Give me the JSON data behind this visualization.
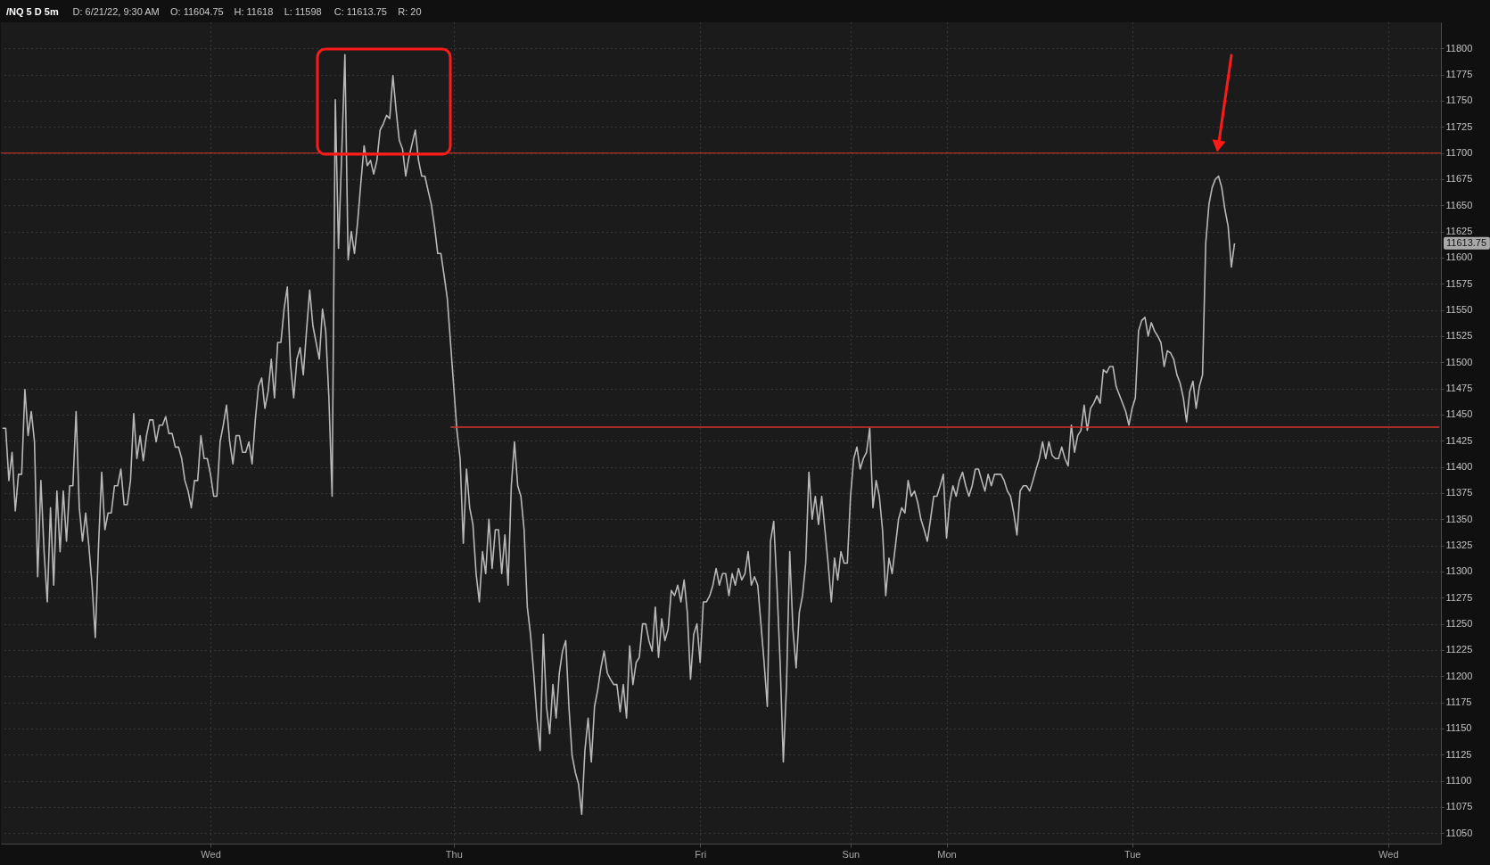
{
  "chart_data": {
    "type": "line",
    "title": "/NQ 5 D 5m",
    "annotations": [
      "D: 6/21/22, 9:30 AM",
      "O: 11604.75",
      "H: 11618",
      "L: 11598",
      "C: 11613.75",
      "R: 20",
      "11613.75"
    ],
    "categories": [
      null,
      null,
      null,
      null,
      null,
      null,
      null,
      null,
      null,
      null,
      null,
      null,
      null,
      null,
      null,
      null,
      null,
      null,
      null,
      null,
      null,
      null,
      null,
      null,
      null,
      null,
      null,
      null,
      null,
      null,
      null,
      null,
      null,
      null,
      null,
      null,
      null,
      null,
      null,
      null,
      null,
      null,
      null,
      null,
      null,
      null,
      null,
      null,
      null,
      null,
      null,
      null,
      null,
      null,
      null,
      null,
      null,
      null,
      null,
      null,
      null,
      null,
      null,
      null,
      null,
      "Wed",
      null,
      null,
      null,
      null,
      null,
      null,
      null,
      null,
      null,
      null,
      null,
      null,
      null,
      null,
      null,
      null,
      null,
      null,
      null,
      null,
      null,
      null,
      null,
      null,
      null,
      null,
      null,
      null,
      null,
      null,
      null,
      null,
      null,
      null,
      null,
      null,
      null,
      null,
      null,
      null,
      null,
      null,
      null,
      null,
      null,
      null,
      null,
      null,
      null,
      null,
      null,
      null,
      null,
      null,
      null,
      null,
      null,
      null,
      null,
      null,
      null,
      null,
      null,
      null,
      null,
      null,
      null,
      null,
      null,
      null,
      null,
      null,
      null,
      null,
      null,
      "Thu",
      null,
      null,
      null,
      null,
      null,
      null,
      null,
      null,
      null,
      null,
      null,
      null,
      null,
      null,
      null,
      null,
      null,
      null,
      null,
      null,
      null,
      null,
      null,
      null,
      null,
      null,
      null,
      null,
      null,
      null,
      null,
      null,
      null,
      null,
      null,
      null,
      null,
      null,
      null,
      null,
      null,
      null,
      null,
      null,
      null,
      null,
      null,
      null,
      null,
      null,
      null,
      null,
      null,
      null,
      null,
      null,
      null,
      null,
      null,
      null,
      null,
      null,
      null,
      null,
      null,
      null,
      null,
      null,
      null,
      null,
      null,
      null,
      null,
      null,
      null,
      null,
      "Fri",
      null,
      null,
      null,
      null,
      null,
      null,
      null,
      null,
      null,
      null,
      null,
      null,
      null,
      null,
      null,
      null,
      null,
      null,
      null,
      null,
      null,
      null,
      null,
      null,
      null,
      null,
      null,
      null,
      null,
      null,
      null,
      null,
      null,
      null,
      null,
      null,
      null,
      null,
      null,
      null,
      null,
      null,
      null,
      null,
      null,
      null,
      "Sun",
      null,
      null,
      null,
      null,
      null,
      null,
      null,
      null,
      null,
      null,
      null,
      null,
      null,
      null,
      null,
      null,
      null,
      null,
      null,
      null,
      null,
      null,
      null,
      null,
      null,
      null,
      null,
      null,
      null,
      "Mon",
      null,
      null,
      null,
      null,
      null,
      null,
      null,
      null,
      null,
      null,
      null,
      null,
      null,
      null,
      null,
      null,
      null,
      null,
      null,
      null,
      null,
      null,
      null,
      null,
      null,
      null,
      null,
      null,
      null,
      null,
      null,
      null,
      null,
      null,
      null,
      null,
      null,
      null,
      null,
      null,
      null,
      null,
      null,
      null,
      null,
      null,
      null,
      null,
      null,
      null,
      null,
      null,
      null,
      null,
      null,
      null,
      null,
      "Tue",
      null,
      null,
      null,
      null,
      null,
      null,
      null,
      null,
      null,
      null,
      null,
      null,
      null,
      null,
      null,
      null,
      null,
      null,
      null,
      null,
      null,
      null,
      null,
      null,
      null,
      null,
      null,
      null,
      null,
      null,
      null,
      null,
      null,
      null,
      null,
      null,
      null,
      null,
      null,
      null,
      null,
      null,
      null,
      null,
      null,
      null,
      null,
      null,
      null,
      null,
      null,
      null,
      null,
      null,
      null,
      null,
      null,
      null,
      null,
      null,
      null,
      null,
      null,
      null,
      null,
      null,
      null,
      null,
      null,
      null,
      null,
      null,
      null,
      null,
      null,
      null,
      null,
      null,
      null,
      "Wed",
      null,
      null,
      null,
      null,
      null,
      null,
      null,
      null,
      null,
      null,
      null,
      null,
      null,
      null,
      null,
      null
    ],
    "series": [
      {
        "color": "#b8b8b8",
        "values": [
          11437,
          11437,
          11387,
          11414,
          11358,
          11393,
          11393,
          11474,
          11430,
          11453,
          11424,
          11295,
          11387,
          11319,
          11271,
          11361,
          11287,
          11377,
          11319,
          11377,
          11329,
          11382,
          11382,
          11453,
          11361,
          11329,
          11356,
          11324,
          11287,
          11237,
          11324,
          11395,
          11340,
          11356,
          11356,
          11382,
          11382,
          11398,
          11364,
          11364,
          11387,
          11451,
          11408,
          11430,
          11406,
          11430,
          11445,
          11445,
          11424,
          11440,
          11440,
          11448,
          11432,
          11432,
          11419,
          11419,
          11408,
          11387,
          11377,
          11361,
          11387,
          11387,
          11430,
          11408,
          11408,
          11393,
          11372,
          11372,
          11424,
          11440,
          11459,
          11424,
          11403,
          11430,
          11430,
          11414,
          11414,
          11424,
          11403,
          11445,
          11477,
          11485,
          11456,
          11472,
          11503,
          11466,
          11519,
          11519,
          11551,
          11572,
          11498,
          11466,
          11503,
          11514,
          11488,
          11530,
          11569,
          11535,
          11519,
          11503,
          11551,
          11530,
          11466,
          11372,
          11751,
          11609,
          11699,
          11794,
          11598,
          11625,
          11604,
          11635,
          11672,
          11707,
          11688,
          11693,
          11680,
          11693,
          11722,
          11728,
          11736,
          11733,
          11774,
          11741,
          11712,
          11704,
          11678,
          11696,
          11709,
          11722,
          11693,
          11678,
          11678,
          11664,
          11651,
          11630,
          11604,
          11604,
          11583,
          11561,
          11519,
          11477,
          11435,
          11408,
          11327,
          11398,
          11361,
          11345,
          11298,
          11271,
          11319,
          11298,
          11350,
          11303,
          11340,
          11340,
          11298,
          11335,
          11287,
          11382,
          11424,
          11382,
          11372,
          11340,
          11266,
          11240,
          11203,
          11160,
          11129,
          11240,
          11171,
          11145,
          11192,
          11160,
          11203,
          11224,
          11234,
          11171,
          11124,
          11108,
          11097,
          11068,
          11129,
          11160,
          11118,
          11171,
          11187,
          11208,
          11224,
          11203,
          11197,
          11192,
          11192,
          11166,
          11192,
          11160,
          11229,
          11192,
          11213,
          11218,
          11250,
          11250,
          11234,
          11224,
          11266,
          11218,
          11255,
          11234,
          11245,
          11282,
          11277,
          11287,
          11271,
          11292,
          11261,
          11197,
          11240,
          11250,
          11213,
          11271,
          11271,
          11277,
          11287,
          11303,
          11287,
          11298,
          11298,
          11277,
          11298,
          11287,
          11303,
          11292,
          11298,
          11319,
          11287,
          11295,
          11287,
          11250,
          11213,
          11171,
          11329,
          11348,
          11287,
          11213,
          11118,
          11192,
          11319,
          11245,
          11208,
          11261,
          11277,
          11308,
          11395,
          11350,
          11372,
          11345,
          11372,
          11340,
          11308,
          11271,
          11313,
          11292,
          11319,
          11308,
          11308,
          11372,
          11408,
          11419,
          11398,
          11408,
          11414,
          11437,
          11361,
          11387,
          11372,
          11340,
          11277,
          11313,
          11298,
          11324,
          11350,
          11361,
          11356,
          11387,
          11372,
          11377,
          11366,
          11350,
          11340,
          11329,
          11350,
          11372,
          11372,
          11382,
          11393,
          11332,
          11366,
          11382,
          11372,
          11387,
          11395,
          11382,
          11372,
          11382,
          11398,
          11398,
          11387,
          11377,
          11393,
          11382,
          11393,
          11393,
          11393,
          11387,
          11377,
          11372,
          11356,
          11335,
          11377,
          11382,
          11382,
          11377,
          11387,
          11398,
          11408,
          11424,
          11408,
          11424,
          11411,
          11408,
          11408,
          11419,
          11408,
          11401,
          11440,
          11414,
          11430,
          11435,
          11459,
          11435,
          11456,
          11461,
          11468,
          11461,
          11493,
          11490,
          11496,
          11496,
          11477,
          11469,
          11461,
          11453,
          11440,
          11456,
          11466,
          11530,
          11540,
          11543,
          11525,
          11538,
          11530,
          11525,
          11519,
          11496,
          11511,
          11509,
          11503,
          11488,
          11480,
          11466,
          11443,
          11472,
          11482,
          11456,
          11477,
          11488,
          11614,
          11651,
          11667,
          11675,
          11678,
          11667,
          11646,
          11630,
          11591,
          11613.75,
          null,
          null,
          null,
          null,
          null,
          null,
          null,
          null,
          null,
          null,
          null,
          null,
          null,
          null,
          null,
          null,
          null,
          null,
          null,
          null,
          null,
          null,
          null,
          null,
          null,
          null,
          null,
          null,
          null,
          null,
          null,
          null,
          null,
          null,
          null,
          null,
          null,
          null,
          null,
          null,
          null,
          null,
          null,
          null,
          null,
          null,
          null,
          null,
          null,
          null,
          null,
          null,
          null,
          null,
          null,
          null,
          null,
          null,
          null,
          null,
          null,
          null,
          null,
          null
        ]
      },
      {
        "type": "line",
        "color": "#d8342c",
        "values": [
          null,
          null,
          null,
          null,
          null,
          null,
          null,
          null,
          null,
          null,
          null,
          null,
          null,
          null,
          null,
          null,
          null,
          null,
          null,
          null,
          null,
          null,
          null,
          null,
          null,
          null,
          null,
          null,
          null,
          null,
          null,
          null,
          null,
          null,
          null,
          null,
          null,
          null,
          null,
          null,
          null,
          null,
          null,
          null,
          null,
          null,
          null,
          null,
          null,
          null,
          null,
          null,
          null,
          null,
          null,
          null,
          null,
          null,
          null,
          null,
          null,
          null,
          null,
          null,
          null,
          null,
          null,
          null,
          null,
          null,
          null,
          null,
          null,
          null,
          null,
          null,
          null,
          null,
          null,
          null,
          null,
          null,
          null,
          null,
          null,
          null,
          null,
          null,
          null,
          null,
          null,
          null,
          null,
          null,
          null,
          null,
          null,
          null,
          null,
          null,
          null,
          null,
          null,
          null,
          null,
          null,
          null,
          null,
          null,
          null,
          null,
          null,
          null,
          null,
          null,
          null,
          null,
          null,
          null,
          null,
          null,
          null,
          null,
          null,
          null,
          null,
          null,
          null,
          null,
          null,
          null,
          null,
          null,
          null,
          null,
          null,
          null,
          null,
          null,
          null,
          11438,
          11438,
          11438,
          11438,
          11438,
          11438,
          11438,
          11438,
          11438,
          11438,
          11438,
          11438,
          11438,
          11438,
          11438,
          11438,
          11438,
          11438,
          11438,
          11438,
          11438,
          11438,
          11438,
          11438,
          11438,
          11438,
          11438,
          11438,
          11438,
          11438,
          11438,
          11438,
          11438,
          11438,
          11438,
          11438,
          11438,
          11438,
          11438,
          11438,
          11438,
          11438,
          11438,
          11438,
          11438,
          11438,
          11438,
          11438,
          11438,
          11438,
          11438,
          11438,
          11438,
          11438,
          11438,
          11438,
          11438,
          11438,
          11438,
          11438,
          11438,
          11438,
          11438,
          11438,
          11438,
          11438,
          11438,
          11438,
          11438,
          11438,
          11438,
          11438,
          11438,
          11438,
          11438,
          11438,
          11438,
          11438,
          11438,
          11438,
          11438,
          11438,
          11438,
          11438,
          11438,
          11438,
          11438,
          11438,
          11438,
          11438,
          11438,
          11438,
          11438,
          11438,
          11438,
          11438,
          11438,
          11438,
          11438,
          11438,
          11438,
          11438,
          11438,
          11438,
          11438,
          11438,
          11438,
          11438,
          11438,
          11438,
          11438,
          11438,
          11438,
          11438,
          11438,
          11438,
          11438,
          11438,
          11438,
          11438,
          11438,
          11438,
          11438,
          11438,
          11438,
          11438,
          11438,
          11438,
          11438,
          11438,
          11438,
          11438,
          11438,
          11438,
          11438,
          11438,
          11438,
          11438,
          11438,
          11438,
          11438,
          11438,
          11438,
          11438,
          11438,
          11438,
          11438,
          11438,
          11438,
          11438,
          11438,
          11438,
          11438,
          11438,
          11438,
          11438,
          11438,
          11438,
          11438,
          11438,
          11438,
          11438,
          11438,
          11438,
          11438,
          11438,
          11438,
          11438,
          11438,
          11438,
          11438,
          11438,
          11438,
          11438,
          11438,
          11438,
          11438,
          11438,
          11438,
          11438,
          11438,
          11438,
          11438,
          11438,
          11438,
          11438,
          11438,
          11438,
          11438,
          11438,
          11438,
          11438,
          11438,
          11438,
          11438,
          11438,
          11438,
          11438,
          11438,
          11438,
          11438,
          11438,
          11438,
          11438,
          11438,
          11438,
          11438,
          11438,
          11438,
          11438,
          11438,
          11438,
          11438,
          11438,
          11438,
          11438,
          11438,
          11438,
          11438,
          11438,
          11438,
          11438,
          11438,
          11438,
          11438,
          11438,
          11438,
          11438,
          11438,
          11438,
          11438,
          11438,
          11438,
          11438,
          11438,
          11438,
          11438,
          11438,
          11438,
          11438,
          11438,
          11438,
          11438,
          11438,
          11438,
          11438,
          11438,
          11438,
          11438,
          11438,
          11438,
          11438,
          11438,
          11438,
          11438,
          11438,
          11438,
          11438,
          11438,
          11438,
          11438,
          11438,
          11438,
          11438,
          11438,
          11438,
          11438,
          11438,
          11438,
          11438,
          11438,
          11438,
          11438,
          11438,
          11438,
          11438,
          11438,
          11438,
          11438,
          11438,
          11438,
          11438,
          11438,
          11438,
          11438,
          11438,
          11438,
          11438,
          11438,
          11438,
          11438,
          11438,
          11438,
          11438,
          11438,
          11438,
          11438,
          11438,
          11438,
          11438,
          11438,
          11438,
          11438,
          11438,
          11438,
          11438,
          11438,
          11438,
          11438,
          11438
        ]
      }
    ],
    "ylim": [
      11040,
      11825
    ],
    "yticks": [
      11050,
      11075,
      11100,
      11125,
      11150,
      11175,
      11200,
      11225,
      11250,
      11275,
      11300,
      11325,
      11350,
      11375,
      11400,
      11425,
      11450,
      11475,
      11500,
      11525,
      11550,
      11575,
      11600,
      11625,
      11650,
      11675,
      11700,
      11725,
      11750,
      11775,
      11800
    ],
    "ref_lines": [
      {
        "axis": "y",
        "value": 11700,
        "color": "#d8342c"
      }
    ],
    "grid": true
  }
}
